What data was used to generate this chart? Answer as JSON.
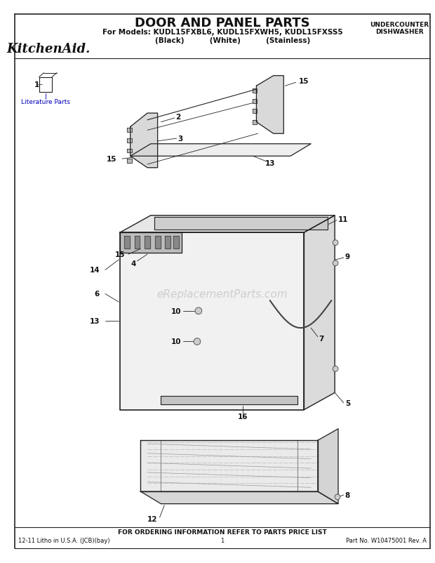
{
  "title": "DOOR AND PANEL PARTS",
  "subtitle_line1": "For Models: KUDL15FXBL6, KUDL15FXWH5, KUDL15FXSS5",
  "subtitle_line2": "        (Black)          (White)          (Stainless)",
  "top_right_line1": "UNDERCOUNTER",
  "top_right_line2": "DISHWASHER",
  "brand": "KitchenAid.",
  "footer_center": "FOR ORDERING INFORMATION REFER TO PARTS PRICE LIST",
  "footer_left": "12-11 Litho in U.S.A. (JCB)(bay)",
  "footer_mid": "1",
  "footer_right": "Part No. W10475001 Rev. A",
  "watermark": "eReplacementParts.com",
  "bg_color": "#ffffff",
  "line_color": "#222222",
  "label_color": "#111111"
}
